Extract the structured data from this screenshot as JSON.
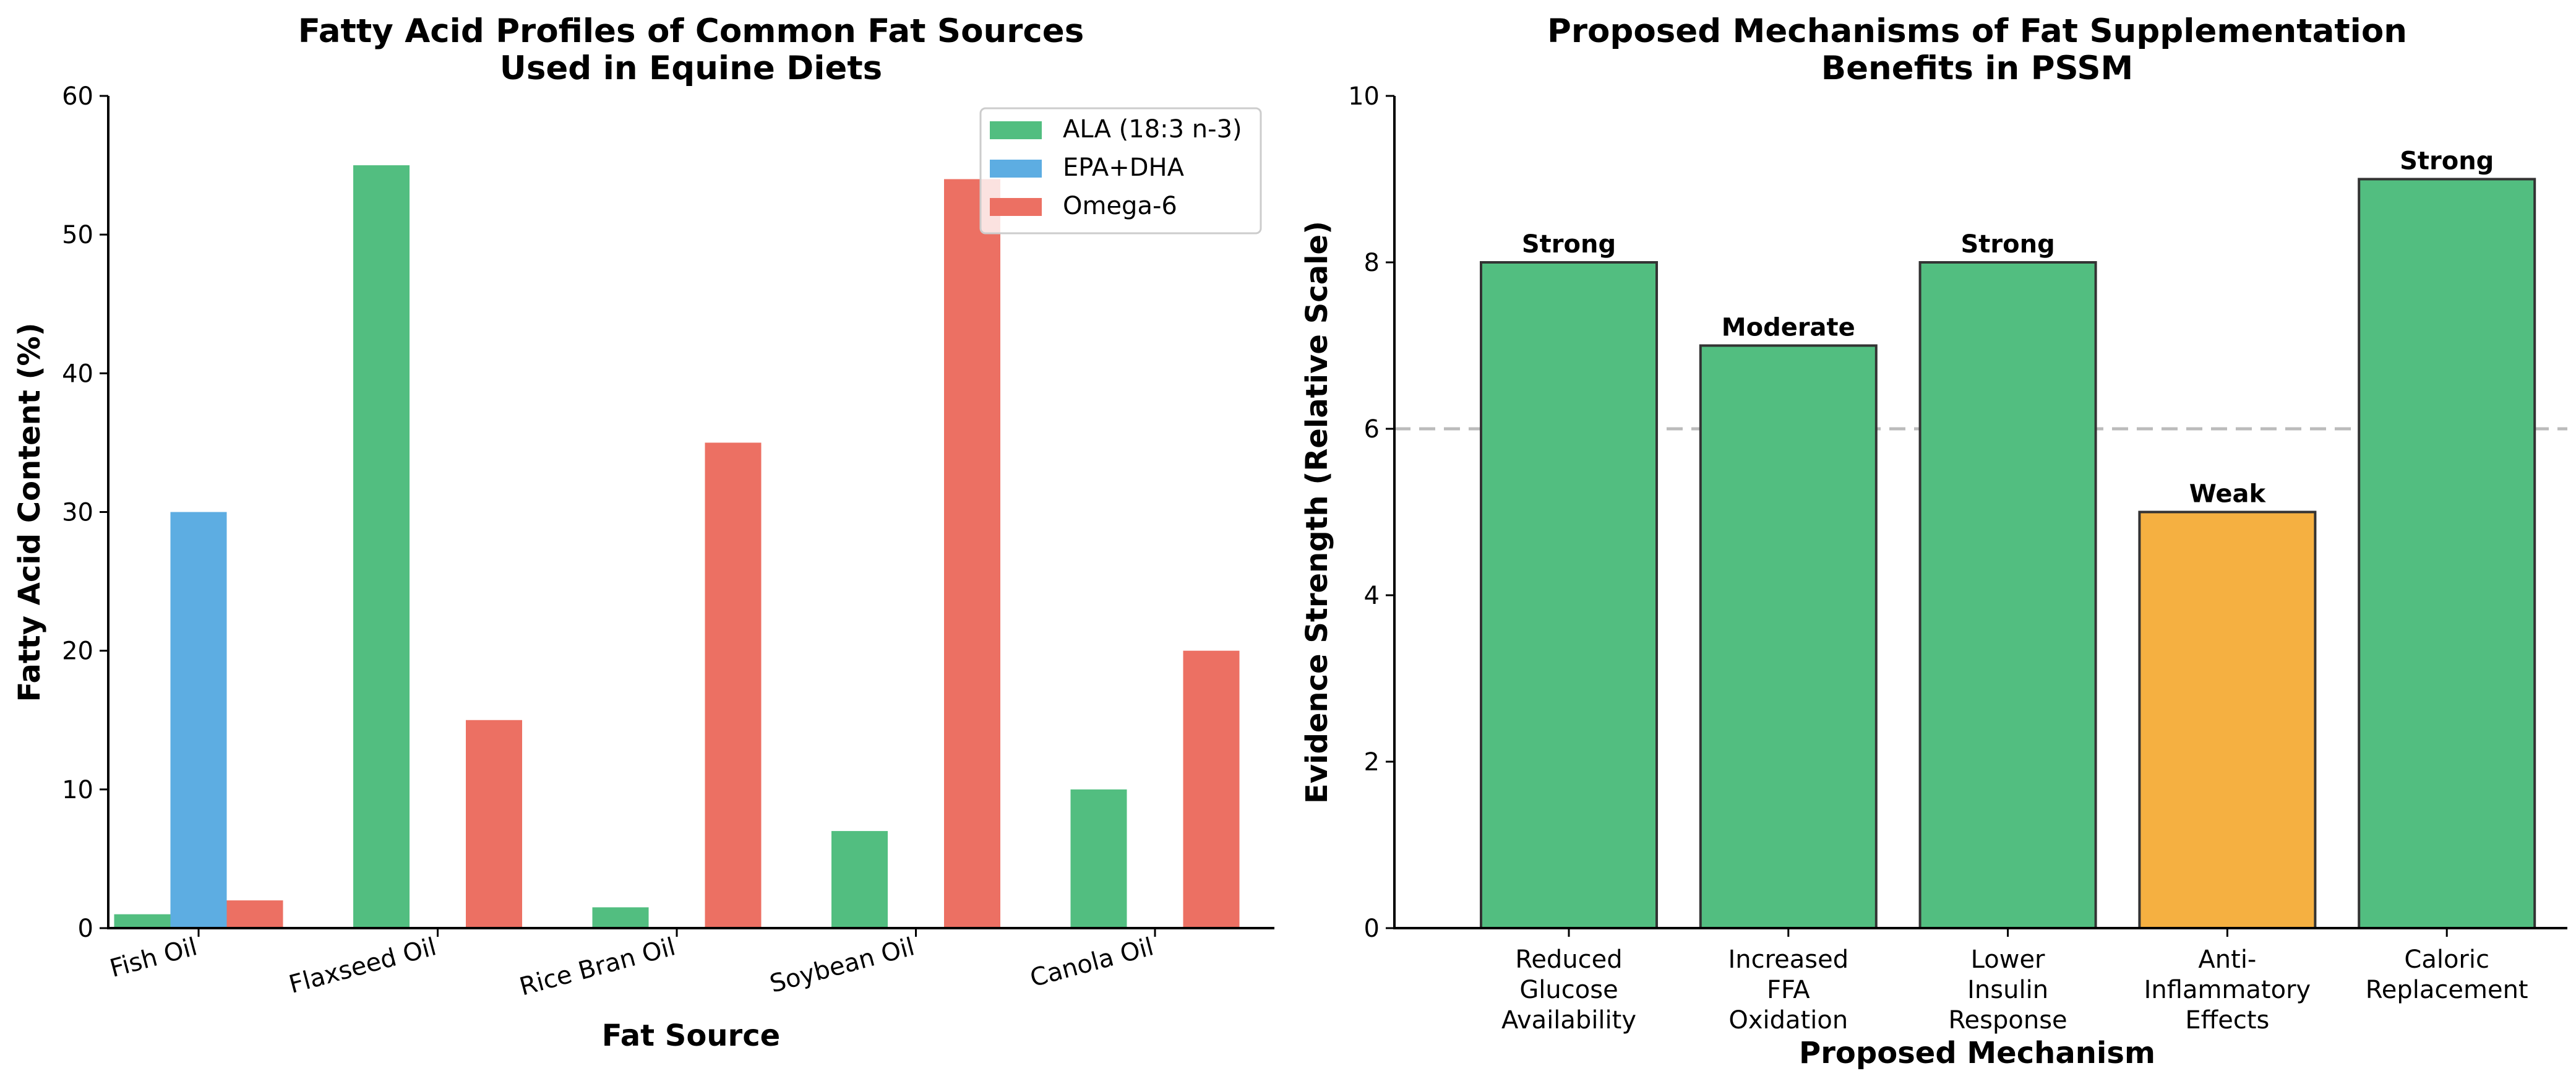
{
  "chart_data": [
    {
      "type": "bar",
      "title": "Fatty Acid Profiles of Common Fat Sources\nUsed in Equine Diets",
      "title_lines": [
        "Fatty Acid Profiles of Common Fat Sources",
        "Used in Equine Diets"
      ],
      "xlabel": "Fat Source",
      "ylabel": "Fatty Acid Content (%)",
      "categories": [
        "Fish Oil",
        "Flaxseed Oil",
        "Rice Bran Oil",
        "Soybean Oil",
        "Canola Oil"
      ],
      "series": [
        {
          "name": "ALA (18:3 n-3)",
          "color": "#52be80",
          "values": [
            1,
            55,
            1.5,
            7,
            10
          ]
        },
        {
          "name": "EPA+DHA",
          "color": "#5dade2",
          "values": [
            30,
            0,
            0,
            0,
            0
          ]
        },
        {
          "name": "Omega-6",
          "color": "#ec7063",
          "values": [
            2,
            15,
            35,
            54,
            20
          ]
        }
      ],
      "ylim": [
        0,
        60
      ],
      "yticks": [
        0,
        10,
        20,
        30,
        40,
        50,
        60
      ],
      "ytick_labels": [
        "0",
        "10",
        "20",
        "30",
        "40",
        "50",
        "60"
      ],
      "grid": false,
      "legend_position": "top-right",
      "xtick_rotation": "slanted"
    },
    {
      "type": "bar",
      "title": "Proposed Mechanisms of Fat Supplementation\nBenefits in PSSM",
      "title_lines": [
        "Proposed Mechanisms of Fat Supplementation",
        "Benefits in PSSM"
      ],
      "xlabel": "Proposed Mechanism",
      "ylabel": "Evidence Strength (Relative Scale)",
      "categories": [
        "Reduced\nGlucose\nAvailability",
        "Increased\nFFA\nOxidation",
        "Lower\nInsulin\nResponse",
        "Anti-\nInflammatory\nEffects",
        "Caloric\nReplacement"
      ],
      "category_lines": [
        [
          "Reduced",
          "Glucose",
          "Availability"
        ],
        [
          "Increased",
          "FFA",
          "Oxidation"
        ],
        [
          "Lower",
          "Insulin",
          "Response"
        ],
        [
          "Anti-",
          "Inflammatory",
          "Effects"
        ],
        [
          "Caloric",
          "Replacement"
        ]
      ],
      "values": [
        8,
        7,
        8,
        5,
        9
      ],
      "bar_labels": [
        "Strong",
        "Moderate",
        "Strong",
        "Weak",
        "Strong"
      ],
      "bar_colors": [
        "#52be80",
        "#52be80",
        "#52be80",
        "#f5b041",
        "#52be80"
      ],
      "edge_color": "#333333",
      "reference_line": {
        "y": 6,
        "style": "dashed",
        "color": "#bbbbbb"
      },
      "ylim": [
        0,
        10
      ],
      "yticks": [
        0,
        2,
        4,
        6,
        8,
        10
      ],
      "ytick_labels": [
        "0",
        "2",
        "4",
        "6",
        "8",
        "10"
      ],
      "grid": false
    }
  ]
}
